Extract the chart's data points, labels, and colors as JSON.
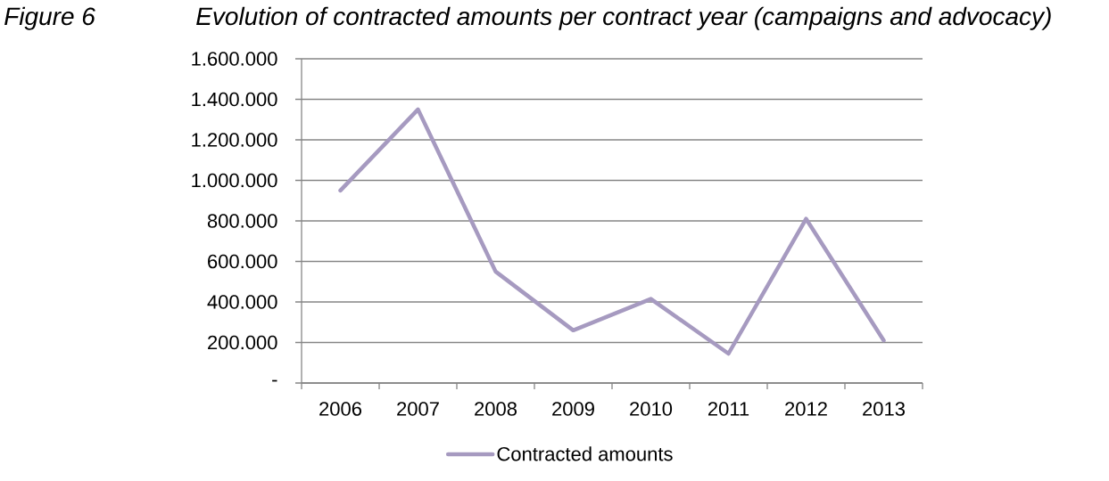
{
  "chart_data": {
    "type": "line",
    "title": "Evolution of contracted amounts per contract year (campaigns and advocacy)",
    "annotations": [
      "Figure 6"
    ],
    "categories": [
      "2006",
      "2007",
      "2008",
      "2009",
      "2010",
      "2011",
      "2012",
      "2013"
    ],
    "series": [
      {
        "name": "Contracted amounts",
        "color": "#a69ac0",
        "values": [
          950000,
          1350000,
          550000,
          260000,
          415000,
          145000,
          810000,
          210000
        ]
      }
    ],
    "ylim": [
      0,
      1600000
    ],
    "yticks": [
      {
        "value": 0,
        "label": "-"
      },
      {
        "value": 200000,
        "label": "200.000"
      },
      {
        "value": 400000,
        "label": "400.000"
      },
      {
        "value": 600000,
        "label": "600.000"
      },
      {
        "value": 800000,
        "label": "800.000"
      },
      {
        "value": 1000000,
        "label": "1.000.000"
      },
      {
        "value": 1200000,
        "label": "1.200.000"
      },
      {
        "value": 1400000,
        "label": "1.400.000"
      },
      {
        "value": 1600000,
        "label": "1.600.000"
      }
    ],
    "grid": "y",
    "legend": "bottom",
    "marker": "none",
    "line_style": "solid"
  }
}
